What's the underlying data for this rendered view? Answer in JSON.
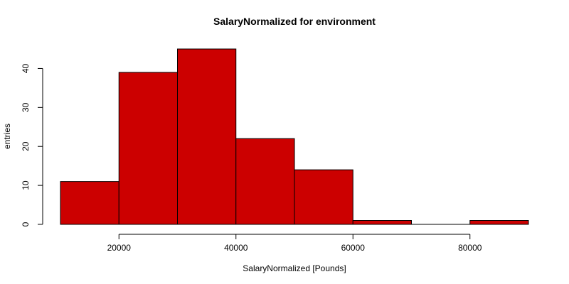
{
  "chart_data": {
    "type": "bar",
    "title": "SalaryNormalized for environment",
    "xlabel": "SalaryNormalized [Pounds]",
    "ylabel": "entries",
    "bin_edges": [
      10000,
      20000,
      30000,
      40000,
      50000,
      60000,
      70000,
      80000,
      90000
    ],
    "values": [
      11,
      39,
      45,
      22,
      14,
      1,
      0,
      1
    ],
    "x_ticks": [
      20000,
      40000,
      60000,
      80000
    ],
    "y_ticks": [
      0,
      10,
      20,
      30,
      40
    ],
    "xlim": [
      10000,
      90000
    ],
    "ylim": [
      0,
      45
    ],
    "bar_color": "#cc0000",
    "grid": false,
    "legend": "none"
  }
}
